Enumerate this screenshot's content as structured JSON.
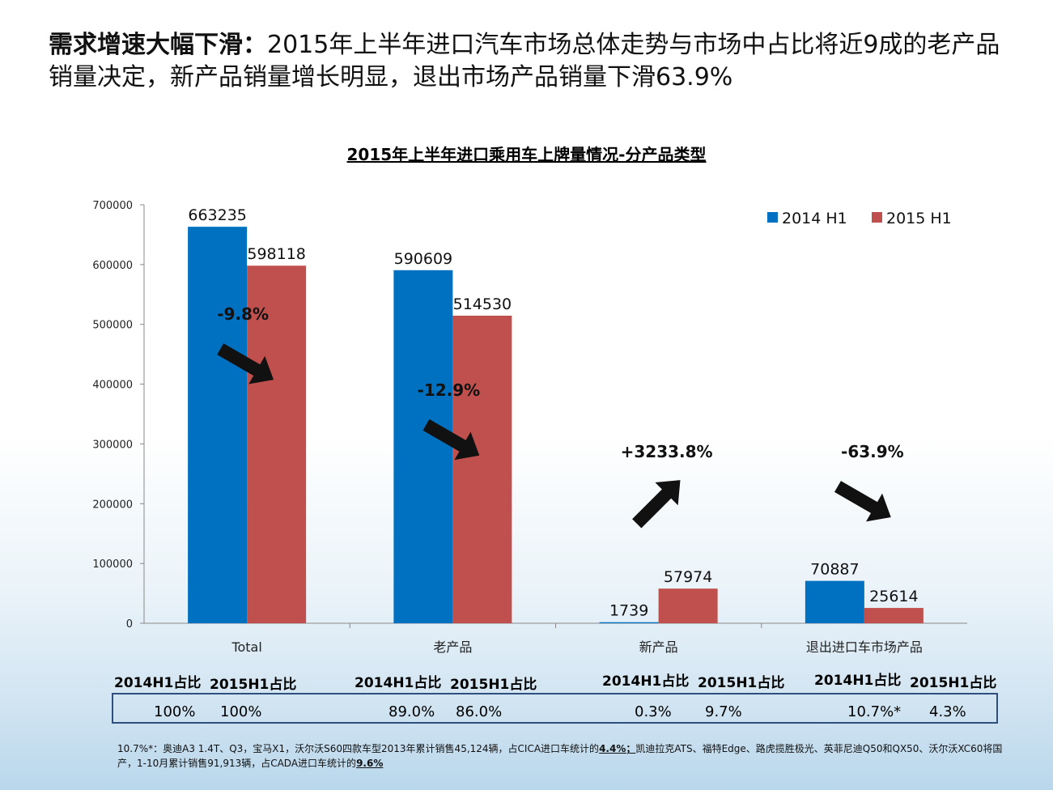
{
  "headline": {
    "bold": "需求增速大幅下滑：",
    "text": "2015年上半年进口汽车市场总体走势与市场中占比将近9成的老产品销量决定，新产品销量增长明显，退出市场产品销量下滑63.9%"
  },
  "shares": {
    "groups": [
      {
        "h14": "2014H1占比",
        "h15": "2015H1占比",
        "v14": "100%",
        "v15": "100%"
      },
      {
        "h14": "2014H1占比",
        "h15": "2015H1占比",
        "v14": "89.0%",
        "v15": "86.0%"
      },
      {
        "h14": "2014H1占比",
        "h15": "2015H1占比",
        "v14": "0.3%",
        "v15": "9.7%"
      },
      {
        "h14": "2014H1占比",
        "h15": "2015H1占比",
        "v14": "10.7%*",
        "v15": "4.3%"
      }
    ]
  },
  "footnote": {
    "part1": "10.7%*：奥迪A3 1.4T、Q3，宝马X1，沃尔沃S60四款车型2013年累计销售45,124辆，占CICA进口车统计的",
    "ul1": "4.4%；",
    "part2": "凯迪拉克ATS、福特Edge、路虎揽胜极光、英菲尼迪Q50和QX50、沃尔沃XC60将国产，1-10月累计销售91,913辆，占CADA进口车统计的",
    "ul2": "9.6%"
  },
  "chart_data": {
    "type": "bar",
    "title": "2015年上半年进口乘用车上牌量情况-分产品类型",
    "categories": [
      "Total",
      "老产品",
      "新产品",
      "退出进口车市场产品"
    ],
    "series": [
      {
        "name": "2014 H1",
        "color": "#0070c0",
        "values": [
          663235,
          590609,
          1739,
          70887
        ]
      },
      {
        "name": "2015 H1",
        "color": "#c0504d",
        "values": [
          598118,
          514530,
          57974,
          25614
        ]
      }
    ],
    "changes": [
      "-9.8%",
      "-12.9%",
      "+3233.8%",
      "-63.9%"
    ],
    "change_direction": [
      "down",
      "down",
      "up",
      "down"
    ],
    "ylim": [
      0,
      700000
    ],
    "yticks": [
      0,
      100000,
      200000,
      300000,
      400000,
      500000,
      600000,
      700000
    ],
    "legend_position": "top-right",
    "grid": false
  }
}
